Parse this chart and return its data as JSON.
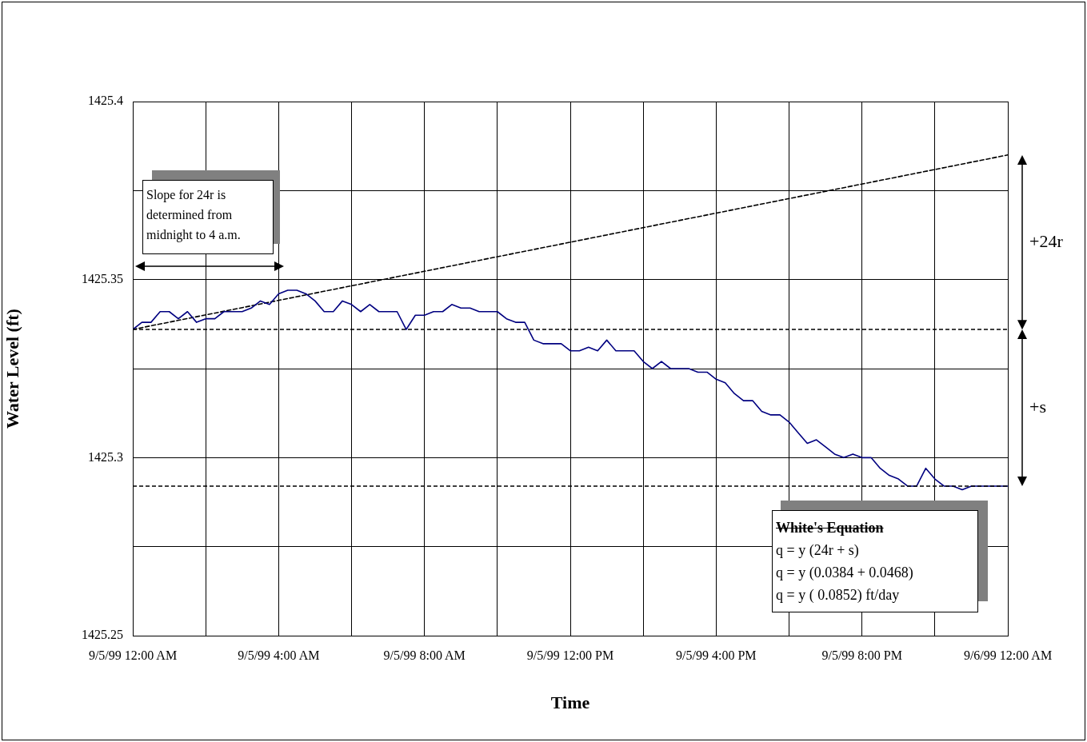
{
  "chart_data": {
    "type": "line",
    "xlabel": "Time",
    "ylabel": "Water Level (ft)",
    "xlim": [
      "1999-09-05T00:00",
      "1999-09-06T00:00"
    ],
    "ylim": [
      1425.25,
      1425.4
    ],
    "xticks": [
      {
        "value": "1999-09-05T00:00",
        "label": "9/5/99 12:00 AM"
      },
      {
        "value": "1999-09-05T02:00",
        "label": null
      },
      {
        "value": "1999-09-05T04:00",
        "label": "9/5/99 4:00 AM"
      },
      {
        "value": "1999-09-05T06:00",
        "label": null
      },
      {
        "value": "1999-09-05T08:00",
        "label": "9/5/99 8:00 AM"
      },
      {
        "value": "1999-09-05T10:00",
        "label": null
      },
      {
        "value": "1999-09-05T12:00",
        "label": "9/5/99 12:00 PM"
      },
      {
        "value": "1999-09-05T14:00",
        "label": null
      },
      {
        "value": "1999-09-05T16:00",
        "label": "9/5/99 4:00 PM"
      },
      {
        "value": "1999-09-05T18:00",
        "label": null
      },
      {
        "value": "1999-09-05T20:00",
        "label": "9/5/99 8:00 PM"
      },
      {
        "value": "1999-09-05T22:00",
        "label": null
      },
      {
        "value": "1999-09-06T00:00",
        "label": "9/6/99 12:00 AM"
      }
    ],
    "yticks": [
      1425.25,
      {
        "value": 1425.275,
        "label": null
      },
      1425.3,
      {
        "value": 1425.325,
        "label": null
      },
      1425.35,
      {
        "value": 1425.375,
        "label": null
      },
      1425.4
    ],
    "grid": true,
    "legend": false,
    "marker": "none",
    "series": [
      {
        "color": "#000080",
        "line_style": "solid",
        "x": [
          "1999-09-05T00:00",
          "1999-09-05T00:15",
          "1999-09-05T00:30",
          "1999-09-05T00:45",
          "1999-09-05T01:00",
          "1999-09-05T01:15",
          "1999-09-05T01:30",
          "1999-09-05T01:45",
          "1999-09-05T02:00",
          "1999-09-05T02:15",
          "1999-09-05T02:30",
          "1999-09-05T03:00",
          "1999-09-05T03:15",
          "1999-09-05T03:30",
          "1999-09-05T03:45",
          "1999-09-05T04:00",
          "1999-09-05T04:15",
          "1999-09-05T04:30",
          "1999-09-05T04:45",
          "1999-09-05T05:00",
          "1999-09-05T05:15",
          "1999-09-05T05:30",
          "1999-09-05T05:45",
          "1999-09-05T06:00",
          "1999-09-05T06:15",
          "1999-09-05T06:30",
          "1999-09-05T06:45",
          "1999-09-05T07:15",
          "1999-09-05T07:30",
          "1999-09-05T07:45",
          "1999-09-05T08:00",
          "1999-09-05T08:15",
          "1999-09-05T08:30",
          "1999-09-05T08:45",
          "1999-09-05T09:00",
          "1999-09-05T09:15",
          "1999-09-05T09:30",
          "1999-09-05T10:00",
          "1999-09-05T10:15",
          "1999-09-05T10:30",
          "1999-09-05T10:45",
          "1999-09-05T11:00",
          "1999-09-05T11:15",
          "1999-09-05T11:45",
          "1999-09-05T12:00",
          "1999-09-05T12:15",
          "1999-09-05T12:30",
          "1999-09-05T12:45",
          "1999-09-05T13:00",
          "1999-09-05T13:15",
          "1999-09-05T13:45",
          "1999-09-05T14:00",
          "1999-09-05T14:15",
          "1999-09-05T14:30",
          "1999-09-05T14:45",
          "1999-09-05T15:15",
          "1999-09-05T15:30",
          "1999-09-05T15:45",
          "1999-09-05T16:00",
          "1999-09-05T16:15",
          "1999-09-05T16:30",
          "1999-09-05T16:45",
          "1999-09-05T17:00",
          "1999-09-05T17:15",
          "1999-09-05T17:30",
          "1999-09-05T17:45",
          "1999-09-05T18:00",
          "1999-09-05T18:15",
          "1999-09-05T18:30",
          "1999-09-05T18:45",
          "1999-09-05T19:00",
          "1999-09-05T19:15",
          "1999-09-05T19:30",
          "1999-09-05T19:45",
          "1999-09-05T20:00",
          "1999-09-05T20:15",
          "1999-09-05T20:30",
          "1999-09-05T20:45",
          "1999-09-05T21:00",
          "1999-09-05T21:15",
          "1999-09-05T21:30",
          "1999-09-05T21:45",
          "1999-09-05T22:00",
          "1999-09-05T22:15",
          "1999-09-05T22:30",
          "1999-09-05T22:45",
          "1999-09-05T23:00",
          "1999-09-06T00:00"
        ],
        "values": [
          1425.336,
          1425.338,
          1425.338,
          1425.341,
          1425.341,
          1425.339,
          1425.341,
          1425.338,
          1425.339,
          1425.339,
          1425.341,
          1425.341,
          1425.342,
          1425.344,
          1425.343,
          1425.346,
          1425.347,
          1425.347,
          1425.346,
          1425.344,
          1425.341,
          1425.341,
          1425.344,
          1425.343,
          1425.341,
          1425.343,
          1425.341,
          1425.341,
          1425.336,
          1425.34,
          1425.34,
          1425.341,
          1425.341,
          1425.343,
          1425.342,
          1425.342,
          1425.341,
          1425.341,
          1425.339,
          1425.338,
          1425.338,
          1425.333,
          1425.332,
          1425.332,
          1425.33,
          1425.33,
          1425.331,
          1425.33,
          1425.333,
          1425.33,
          1425.33,
          1425.327,
          1425.325,
          1425.327,
          1425.325,
          1425.325,
          1425.324,
          1425.324,
          1425.322,
          1425.321,
          1425.318,
          1425.316,
          1425.316,
          1425.313,
          1425.312,
          1425.312,
          1425.31,
          1425.307,
          1425.304,
          1425.305,
          1425.303,
          1425.301,
          1425.3,
          1425.301,
          1425.3,
          1425.3,
          1425.297,
          1425.295,
          1425.294,
          1425.292,
          1425.292,
          1425.297,
          1425.294,
          1425.292,
          1425.292,
          1425.291,
          1425.292,
          1425.292
        ]
      },
      {
        "type": "line",
        "color": "#000000",
        "line_style": "dashed",
        "x": [
          "1999-09-05T00:00",
          "1999-09-06T00:00"
        ],
        "values": [
          1425.336,
          1425.385
        ]
      }
    ],
    "ref_lines": [
      {
        "axis": "y",
        "value": 1425.336,
        "color": "#000000",
        "line_style": "dashed"
      },
      {
        "axis": "y",
        "value": 1425.292,
        "color": "#000000",
        "line_style": "dashed"
      }
    ],
    "annotations": [
      "Slope for 24r is determined from midnight to 4 a.m.",
      "+24r",
      "+s",
      "White's Equation",
      "q = y (24r + s)",
      "q = y (0.0384 + 0.0468)",
      "q = y ( 0.0852) ft/day"
    ]
  }
}
